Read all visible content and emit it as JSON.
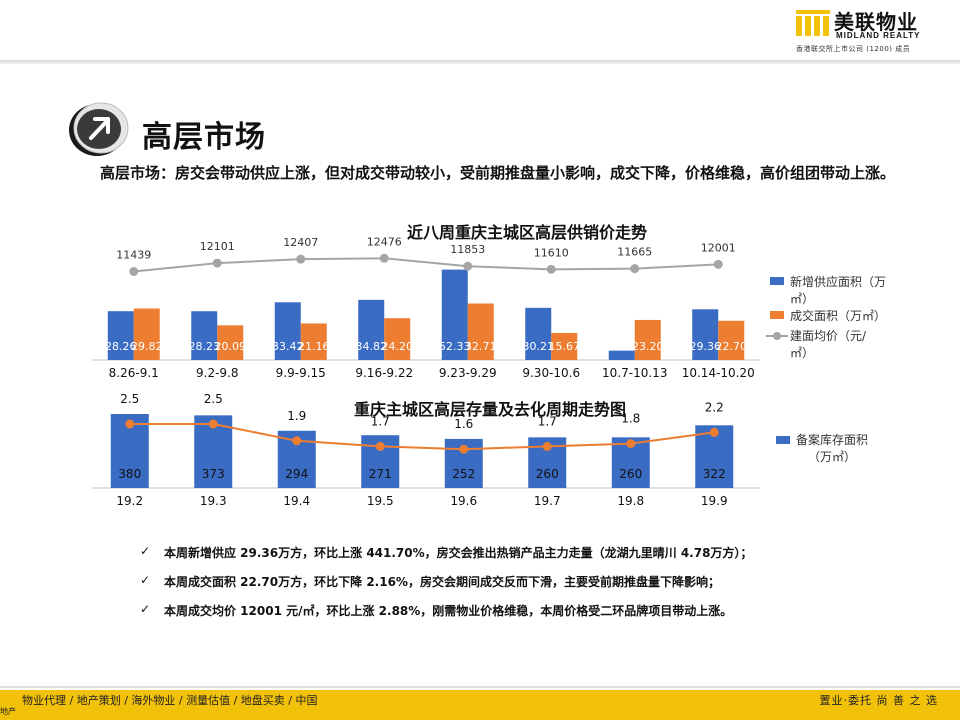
{
  "header": {
    "logo_cn": "美联物业",
    "logo_en": "MIDLAND REALTY",
    "logo_sub": "香港联交所上市公司 (1200) 成员"
  },
  "page": {
    "title": "高层市场",
    "lead": "高层市场：房交会带动供应上涨，但对成交带动较小，受前期推盘量小影响，成交下降，价格维稳，高价组团带动上涨。"
  },
  "chart_data": [
    {
      "type": "bar",
      "title": "近八周重庆主城区高层供销价走势",
      "categories": [
        "8.26-9.1",
        "9.2-9.8",
        "9.9-9.15",
        "9.16-9.22",
        "9.23-9.29",
        "9.30-10.6",
        "10.7-10.13",
        "10.14-10.20"
      ],
      "series": [
        {
          "name": "新增供应面积（万㎡）",
          "values": [
            28.26,
            28.23,
            33.42,
            34.82,
            52.33,
            30.21,
            5.42,
            29.36
          ],
          "color": "#3a6cc4"
        },
        {
          "name": "成交面积（万㎡）",
          "values": [
            29.82,
            20.09,
            21.16,
            24.2,
            32.71,
            15.67,
            23.2,
            22.7
          ],
          "color": "#ec7d31"
        },
        {
          "name": "建面均价（元/㎡）",
          "type": "line",
          "values": [
            11439,
            12101,
            12407,
            12476,
            11853,
            11610,
            11665,
            12001
          ],
          "color": "#a5a5a5"
        }
      ],
      "legend_position": "right"
    },
    {
      "type": "bar",
      "title": "重庆主城区高层存量及去化周期走势图",
      "categories": [
        "19.2",
        "19.3",
        "19.4",
        "19.5",
        "19.6",
        "19.7",
        "19.8",
        "19.9"
      ],
      "series": [
        {
          "name": "备案库存面积（万㎡）",
          "values": [
            380,
            373,
            294,
            271,
            252,
            260,
            260,
            322
          ],
          "color": "#3a6cc4"
        },
        {
          "type": "line",
          "values": [
            2.5,
            2.5,
            1.9,
            1.7,
            1.6,
            1.7,
            1.8,
            2.2
          ],
          "color": "#ec7d31"
        }
      ],
      "legend_position": "right"
    }
  ],
  "bullets": [
    "本周新增供应 29.36万方，环比上涨 441.70%，房交会推出热销产品主力走量（龙湖九里晴川 4.78万方）；",
    "本周成交面积 22.70万方，环比下降 2.16%，房交会期间成交反而下滑，主要受前期推盘量下降影响；",
    "本周成交均价 12001 元/㎡，环比上涨 2.88%，刚需物业价格维稳，本周价格受二环品牌项目带动上涨。"
  ],
  "footer": {
    "left": "物业代理 /  地产策划 /  海外物业 /  测量估值 /  地盘买卖 /  中国",
    "right": "置业·委托  尚  善  之  选",
    "tag": "地产"
  }
}
